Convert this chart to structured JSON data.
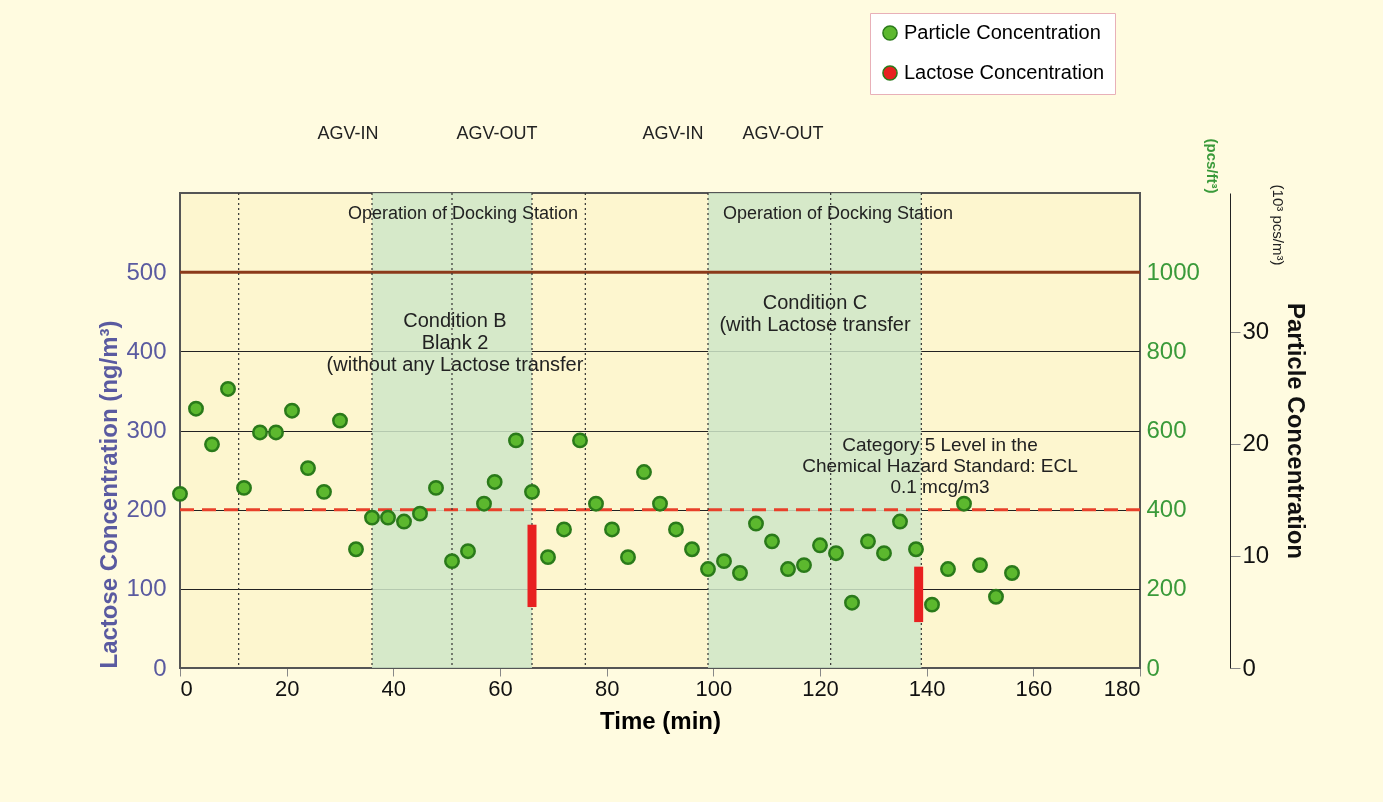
{
  "chart_data": {
    "type": "scatter",
    "xlabel": "Time (min)",
    "ylabel": "Lactose Concentration (ng/m³)",
    "y2label": "(pcs/ft³)",
    "y3label": "Particle Concentration",
    "xlim": [
      0,
      180
    ],
    "xticks": [
      0,
      20,
      40,
      60,
      80,
      100,
      120,
      140,
      160,
      180
    ],
    "ylim": [
      0,
      600
    ],
    "yticks": [
      0,
      100,
      200,
      300,
      400,
      500
    ],
    "y2lim": [
      0,
      1200
    ],
    "y2ticks": [
      0,
      200,
      400,
      600,
      800,
      1000
    ],
    "y3lim": [
      0,
      42.4
    ],
    "y3ticks": [
      0,
      10,
      20,
      30
    ],
    "grid": "y",
    "legend": "top right",
    "series": [
      {
        "name": "Particle Concentration",
        "marker": "circle",
        "axis": "y2",
        "color": "#5cb82e",
        "x": [
          0,
          3,
          6,
          9,
          12,
          15,
          18,
          21,
          24,
          27,
          30,
          33,
          36,
          39,
          42,
          45,
          48,
          51,
          54,
          57,
          59,
          63,
          66,
          69,
          72,
          75,
          78,
          81,
          84,
          87,
          90,
          93,
          96,
          99,
          102,
          105,
          108,
          111,
          114,
          117,
          120,
          123,
          126,
          129,
          132,
          135,
          138,
          141,
          144,
          147,
          150,
          153,
          156
        ],
        "values": [
          440,
          655,
          565,
          705,
          455,
          595,
          595,
          650,
          505,
          445,
          625,
          300,
          380,
          380,
          370,
          390,
          455,
          270,
          295,
          415,
          470,
          575,
          445,
          280,
          350,
          575,
          415,
          350,
          280,
          495,
          415,
          350,
          300,
          250,
          270,
          240,
          365,
          320,
          250,
          260,
          310,
          290,
          165,
          320,
          290,
          370,
          300,
          160,
          250,
          415,
          260,
          180,
          240
        ]
      },
      {
        "name": "Lactose Concentration",
        "type": "bar",
        "axis": "y",
        "color": "#e82020",
        "x": [
          66,
          138.5
        ],
        "base": [
          77,
          58
        ],
        "values": [
          104,
          70
        ]
      }
    ],
    "ref_lines": [
      {
        "axis": "y",
        "value": 200,
        "color": "#e8402a",
        "line_style": "dashed"
      },
      {
        "axis": "y",
        "value": 500,
        "color": "#8b3a1a",
        "line_style": "solid"
      },
      {
        "axis": "x",
        "value": 11,
        "color": "#333333",
        "line_style": "dotted"
      },
      {
        "axis": "x",
        "value": 36,
        "color": "#333333",
        "line_style": "dotted"
      },
      {
        "axis": "x",
        "value": 51,
        "color": "#333333",
        "line_style": "dotted"
      },
      {
        "axis": "x",
        "value": 66,
        "color": "#333333",
        "line_style": "dotted"
      },
      {
        "axis": "x",
        "value": 76,
        "color": "#333333",
        "line_style": "dotted"
      },
      {
        "axis": "x",
        "value": 99,
        "color": "#333333",
        "line_style": "dotted"
      },
      {
        "axis": "x",
        "value": 122,
        "color": "#333333",
        "line_style": "dotted"
      },
      {
        "axis": "x",
        "value": 139,
        "color": "#333333",
        "line_style": "dotted"
      }
    ],
    "bands": [
      {
        "axis": "x",
        "from": 36,
        "to": 66,
        "color": "#cfe6c8"
      },
      {
        "axis": "x",
        "from": 99,
        "to": 139,
        "color": "#cfe6c8"
      }
    ],
    "annotations": [
      "AGV-IN",
      "AGV-OUT",
      "AGV-IN",
      "AGV-OUT",
      "Operation of Docking Station",
      "Operation of Docking Station",
      "Condition B\nBlank 2\n(without any Lactose transfer",
      "Condition C\n(with Lactose transfer",
      "Category 5 Level in the\nChemical Hazard Standard: ECL\n0.1 mcg/m3",
      "(10³ pcs/m³)"
    ]
  }
}
